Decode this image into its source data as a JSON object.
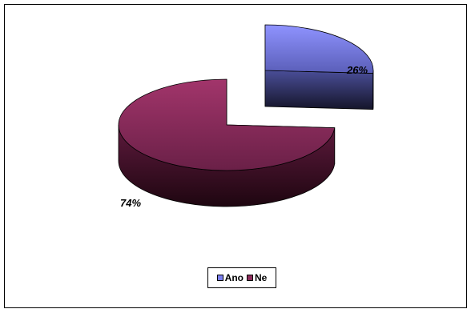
{
  "chart_data": {
    "type": "pie",
    "categories": [
      "Ano",
      "Ne"
    ],
    "values": [
      26,
      74
    ],
    "data_labels": [
      "26%",
      "74%"
    ],
    "colors": [
      "#7b7ff0",
      "#8c2d5c"
    ],
    "exploded_slice": "Ano",
    "three_d": true,
    "legend": {
      "position": "bottom",
      "items": [
        "Ano",
        "Ne"
      ]
    }
  }
}
